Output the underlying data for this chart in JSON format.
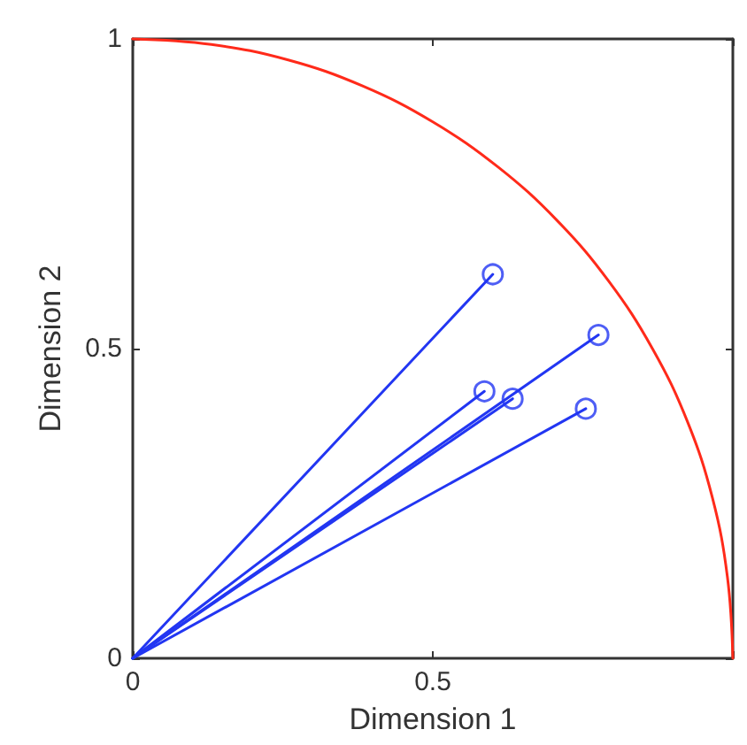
{
  "chart_data": {
    "type": "line",
    "xlabel": "Dimension 1",
    "ylabel": "Dimension 2",
    "xlim": [
      0,
      1
    ],
    "ylim": [
      0,
      1
    ],
    "xticks": [
      0,
      0.5,
      {
        "value": 1,
        "label": null
      }
    ],
    "yticks": [
      0,
      0.5,
      1
    ],
    "grid": false,
    "line_style": "solid",
    "series": [
      {
        "color": "#ff2a1a",
        "marker": "none",
        "x": [
          0,
          0.131,
          0.259,
          0.383,
          0.5,
          0.609,
          0.707,
          0.793,
          0.866,
          0.924,
          0.966,
          0.991,
          1
        ],
        "values": [
          1,
          0.991,
          0.966,
          0.924,
          0.866,
          0.793,
          0.707,
          0.609,
          0.5,
          0.383,
          0.259,
          0.131,
          0
        ]
      },
      {
        "color": "#2236f2",
        "marker": "none",
        "x": [
          0,
          0.6
        ],
        "values": [
          0,
          0.62
        ]
      },
      {
        "color": "#2236f2",
        "marker": "none",
        "x": [
          0,
          0.776
        ],
        "values": [
          0,
          0.522
        ]
      },
      {
        "color": "#2236f2",
        "marker": "none",
        "x": [
          0,
          0.586
        ],
        "values": [
          0,
          0.431
        ]
      },
      {
        "color": "#2236f2",
        "marker": "none",
        "x": [
          0,
          0.633
        ],
        "values": [
          0,
          0.419
        ]
      },
      {
        "color": "#2236f2",
        "marker": "none",
        "x": [
          0,
          0.755
        ],
        "values": [
          0,
          0.403
        ]
      },
      {
        "type": "scatter",
        "color": "#2236f2",
        "marker": "circle",
        "x": [
          0.6,
          0.776,
          0.586,
          0.633,
          0.755
        ],
        "values": [
          0.62,
          0.522,
          0.431,
          0.419,
          0.403
        ]
      }
    ]
  }
}
